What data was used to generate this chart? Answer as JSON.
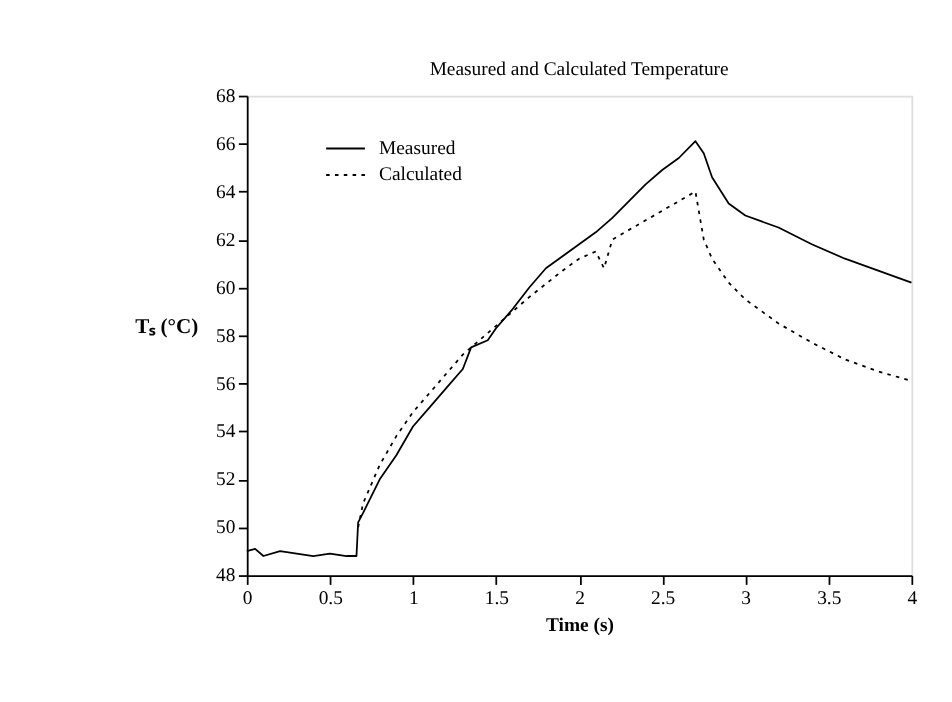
{
  "chart_data": {
    "type": "line",
    "title": "Measured and Calculated Temperature",
    "xlabel": "Time (s)",
    "ylabel": "Tₛ (°C)",
    "xlim": [
      0,
      4
    ],
    "xticks": [
      0,
      0.5,
      1,
      1.5,
      2,
      2.5,
      3,
      3.5,
      4
    ],
    "ylim": [
      48,
      68
    ],
    "yticks": [
      48,
      50,
      52,
      54,
      56,
      58,
      60,
      62,
      64,
      66,
      68
    ],
    "grid": false,
    "legend": "top left",
    "marker": "none",
    "series": [
      {
        "name": "Measured",
        "color": "#000000",
        "line_style": "solid",
        "x": [
          0,
          0.05,
          0.1,
          0.2,
          0.3,
          0.4,
          0.5,
          0.6,
          0.66,
          0.67,
          0.7,
          0.8,
          0.9,
          1.0,
          1.1,
          1.2,
          1.3,
          1.35,
          1.45,
          1.5,
          1.6,
          1.7,
          1.8,
          1.9,
          2.0,
          2.1,
          2.2,
          2.3,
          2.4,
          2.5,
          2.6,
          2.7,
          2.75,
          2.8,
          2.9,
          3.0,
          3.2,
          3.4,
          3.6,
          3.8,
          4.0
        ],
        "values": [
          49.0,
          49.1,
          48.8,
          49.0,
          48.9,
          48.8,
          48.9,
          48.8,
          48.8,
          50.2,
          50.6,
          52.0,
          53.0,
          54.2,
          55.0,
          55.8,
          56.6,
          57.5,
          57.8,
          58.3,
          59.1,
          60.0,
          60.8,
          61.3,
          61.8,
          62.3,
          62.9,
          63.6,
          64.3,
          64.9,
          65.4,
          66.1,
          65.6,
          64.6,
          63.5,
          63.0,
          62.5,
          61.8,
          61.2,
          60.7,
          60.2
        ]
      },
      {
        "name": "Calculated",
        "color": "#000000",
        "line_style": "dotted",
        "x": [
          0.67,
          0.7,
          0.8,
          0.9,
          1.0,
          1.1,
          1.2,
          1.3,
          1.5,
          1.7,
          1.9,
          2.0,
          2.1,
          2.15,
          2.2,
          2.4,
          2.6,
          2.7,
          2.75,
          2.8,
          2.9,
          3.0,
          3.2,
          3.4,
          3.6,
          3.8,
          4.0
        ],
        "values": [
          50.0,
          51.0,
          52.6,
          53.8,
          54.8,
          55.6,
          56.4,
          57.2,
          58.4,
          59.6,
          60.7,
          61.2,
          61.5,
          60.8,
          62.0,
          62.8,
          63.6,
          64.0,
          62.0,
          61.2,
          60.2,
          59.5,
          58.5,
          57.7,
          57.0,
          56.5,
          56.1
        ]
      }
    ]
  }
}
